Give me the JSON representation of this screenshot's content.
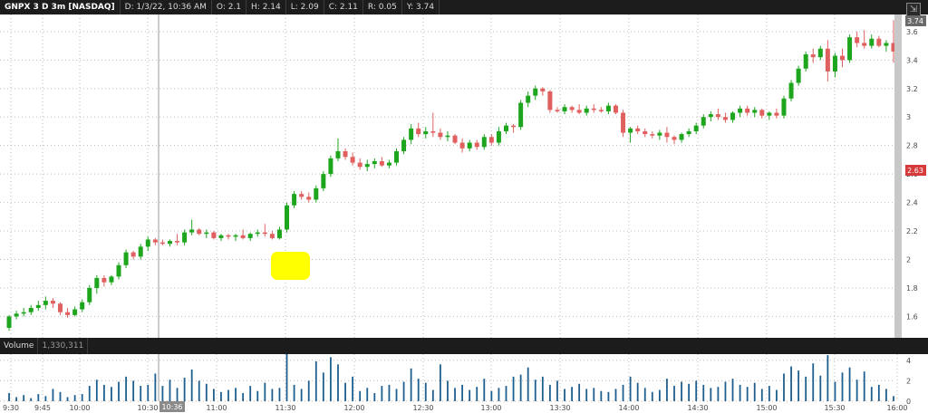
{
  "header": {
    "symbol_label": "GNPX 3 D 3m [NASDAQ]",
    "date": "D: 1/3/22, 10:36 AM",
    "open": "O: 2.1",
    "high": "H: 2.14",
    "low": "L: 2.09",
    "close": "C: 2.11",
    "range": "R: 0.05",
    "y": "Y: 3.74"
  },
  "price_labels": {
    "high_tag": "3.74",
    "last_tag": "2.63"
  },
  "volume_panel": {
    "label": "Volume",
    "value": "1,330,311"
  },
  "cursor_time_label": "10:36",
  "colors": {
    "up": "#1ea51e",
    "down": "#e06060",
    "volume": "#1f5f8f",
    "grid": "#bdbdbd",
    "last_tag": "#d63a3a",
    "highlight": "#ffff00"
  },
  "chart_data": {
    "type": "candlestick",
    "price_axis": {
      "ylim": [
        1.45,
        3.72
      ],
      "ticks": [
        "1.6",
        "1.8",
        "2",
        "2.2",
        "2.4",
        "2.6",
        "2.8",
        "3",
        "3.2",
        "3.4",
        "3.6"
      ]
    },
    "volume_axis": {
      "ylim": [
        0,
        4.6
      ],
      "ticks": [
        "0",
        "2",
        "4"
      ]
    },
    "time_ticks": [
      "9:30",
      "9:45",
      "10:00",
      "10:30",
      "11:00",
      "11:30",
      "12:00",
      "12:30",
      "13:00",
      "13:30",
      "14:00",
      "14:30",
      "15:00",
      "15:30",
      "16:00"
    ],
    "grid": true,
    "candles": [
      [
        1.52,
        1.61,
        1.5,
        1.6
      ],
      [
        1.6,
        1.64,
        1.58,
        1.62
      ],
      [
        1.62,
        1.66,
        1.6,
        1.63
      ],
      [
        1.63,
        1.68,
        1.61,
        1.66
      ],
      [
        1.66,
        1.71,
        1.64,
        1.68
      ],
      [
        1.68,
        1.74,
        1.65,
        1.71
      ],
      [
        1.71,
        1.73,
        1.66,
        1.69
      ],
      [
        1.69,
        1.7,
        1.61,
        1.63
      ],
      [
        1.63,
        1.66,
        1.59,
        1.61
      ],
      [
        1.61,
        1.67,
        1.6,
        1.65
      ],
      [
        1.65,
        1.72,
        1.63,
        1.7
      ],
      [
        1.7,
        1.82,
        1.68,
        1.8
      ],
      [
        1.8,
        1.89,
        1.76,
        1.87
      ],
      [
        1.87,
        1.89,
        1.81,
        1.84
      ],
      [
        1.84,
        1.89,
        1.82,
        1.88
      ],
      [
        1.88,
        1.98,
        1.86,
        1.96
      ],
      [
        1.96,
        2.07,
        1.94,
        2.05
      ],
      [
        2.05,
        2.06,
        2.0,
        2.02
      ],
      [
        2.02,
        2.11,
        2.0,
        2.09
      ],
      [
        2.09,
        2.16,
        2.06,
        2.14
      ],
      [
        2.14,
        2.15,
        2.1,
        2.12
      ],
      [
        2.12,
        2.14,
        2.1,
        2.11
      ],
      [
        2.11,
        2.14,
        2.09,
        2.13
      ],
      [
        2.13,
        2.18,
        2.1,
        2.12
      ],
      [
        2.12,
        2.21,
        2.1,
        2.19
      ],
      [
        2.19,
        2.28,
        2.17,
        2.21
      ],
      [
        2.21,
        2.22,
        2.17,
        2.18
      ],
      [
        2.18,
        2.21,
        2.15,
        2.19
      ],
      [
        2.19,
        2.2,
        2.14,
        2.15
      ],
      [
        2.15,
        2.18,
        2.13,
        2.17
      ],
      [
        2.17,
        2.18,
        2.14,
        2.16
      ],
      [
        2.16,
        2.18,
        2.13,
        2.17
      ],
      [
        2.17,
        2.21,
        2.14,
        2.15
      ],
      [
        2.15,
        2.19,
        2.13,
        2.18
      ],
      [
        2.18,
        2.21,
        2.16,
        2.19
      ],
      [
        2.19,
        2.25,
        2.16,
        2.18
      ],
      [
        2.18,
        2.2,
        2.14,
        2.15
      ],
      [
        2.15,
        2.23,
        2.14,
        2.21
      ],
      [
        2.21,
        2.4,
        2.19,
        2.38
      ],
      [
        2.38,
        2.48,
        2.36,
        2.46
      ],
      [
        2.46,
        2.48,
        2.42,
        2.44
      ],
      [
        2.44,
        2.47,
        2.4,
        2.42
      ],
      [
        2.42,
        2.52,
        2.4,
        2.5
      ],
      [
        2.5,
        2.62,
        2.48,
        2.6
      ],
      [
        2.6,
        2.73,
        2.58,
        2.71
      ],
      [
        2.71,
        2.85,
        2.69,
        2.76
      ],
      [
        2.76,
        2.78,
        2.7,
        2.72
      ],
      [
        2.72,
        2.75,
        2.66,
        2.68
      ],
      [
        2.68,
        2.71,
        2.63,
        2.65
      ],
      [
        2.65,
        2.7,
        2.62,
        2.67
      ],
      [
        2.67,
        2.71,
        2.64,
        2.69
      ],
      [
        2.69,
        2.72,
        2.65,
        2.66
      ],
      [
        2.66,
        2.7,
        2.64,
        2.68
      ],
      [
        2.68,
        2.78,
        2.66,
        2.76
      ],
      [
        2.76,
        2.86,
        2.74,
        2.84
      ],
      [
        2.84,
        2.95,
        2.81,
        2.92
      ],
      [
        2.92,
        2.96,
        2.86,
        2.88
      ],
      [
        2.88,
        2.93,
        2.85,
        2.9
      ],
      [
        2.9,
        3.03,
        2.86,
        2.89
      ],
      [
        2.89,
        2.92,
        2.84,
        2.86
      ],
      [
        2.86,
        2.9,
        2.83,
        2.87
      ],
      [
        2.87,
        2.88,
        2.81,
        2.82
      ],
      [
        2.82,
        2.85,
        2.75,
        2.78
      ],
      [
        2.78,
        2.84,
        2.76,
        2.82
      ],
      [
        2.82,
        2.84,
        2.77,
        2.79
      ],
      [
        2.79,
        2.88,
        2.77,
        2.86
      ],
      [
        2.86,
        2.88,
        2.8,
        2.82
      ],
      [
        2.82,
        2.93,
        2.8,
        2.9
      ],
      [
        2.9,
        2.96,
        2.88,
        2.94
      ],
      [
        2.94,
        2.95,
        2.89,
        2.93
      ],
      [
        2.93,
        3.12,
        2.91,
        3.1
      ],
      [
        3.1,
        3.18,
        3.07,
        3.15
      ],
      [
        3.15,
        3.22,
        3.12,
        3.2
      ],
      [
        3.2,
        3.21,
        3.15,
        3.18
      ],
      [
        3.18,
        3.19,
        3.03,
        3.05
      ],
      [
        3.05,
        3.07,
        3.03,
        3.04
      ],
      [
        3.04,
        3.09,
        3.02,
        3.07
      ],
      [
        3.07,
        3.08,
        3.03,
        3.05
      ],
      [
        3.05,
        3.09,
        3.02,
        3.03
      ],
      [
        3.03,
        3.08,
        3.01,
        3.06
      ],
      [
        3.06,
        3.09,
        3.03,
        3.05
      ],
      [
        3.05,
        3.07,
        3.03,
        3.04
      ],
      [
        3.04,
        3.1,
        3.02,
        3.08
      ],
      [
        3.08,
        3.09,
        3.02,
        3.03
      ],
      [
        3.03,
        3.05,
        2.86,
        2.89
      ],
      [
        2.89,
        2.93,
        2.82,
        2.92
      ],
      [
        2.92,
        2.94,
        2.88,
        2.9
      ],
      [
        2.9,
        2.92,
        2.86,
        2.88
      ],
      [
        2.88,
        2.9,
        2.85,
        2.87
      ],
      [
        2.87,
        2.91,
        2.84,
        2.89
      ],
      [
        2.89,
        2.93,
        2.82,
        2.86
      ],
      [
        2.86,
        2.87,
        2.81,
        2.84
      ],
      [
        2.84,
        2.89,
        2.82,
        2.88
      ],
      [
        2.88,
        2.92,
        2.86,
        2.9
      ],
      [
        2.9,
        2.96,
        2.88,
        2.94
      ],
      [
        2.94,
        3.02,
        2.92,
        3.0
      ],
      [
        3.0,
        3.04,
        2.97,
        3.02
      ],
      [
        3.02,
        3.06,
        2.98,
        3.0
      ],
      [
        3.0,
        3.03,
        2.96,
        2.98
      ],
      [
        2.98,
        3.04,
        2.96,
        3.03
      ],
      [
        3.03,
        3.08,
        3.0,
        3.06
      ],
      [
        3.06,
        3.08,
        3.01,
        3.03
      ],
      [
        3.03,
        3.07,
        3.0,
        3.05
      ],
      [
        3.05,
        3.06,
        2.99,
        3.01
      ],
      [
        3.01,
        3.04,
        2.98,
        3.03
      ],
      [
        3.03,
        3.06,
        2.99,
        3.01
      ],
      [
        3.01,
        3.15,
        2.99,
        3.13
      ],
      [
        3.13,
        3.26,
        3.11,
        3.24
      ],
      [
        3.24,
        3.36,
        3.22,
        3.34
      ],
      [
        3.34,
        3.46,
        3.32,
        3.44
      ],
      [
        3.44,
        3.48,
        3.38,
        3.42
      ],
      [
        3.42,
        3.5,
        3.4,
        3.48
      ],
      [
        3.48,
        3.54,
        3.25,
        3.32
      ],
      [
        3.32,
        3.45,
        3.28,
        3.43
      ],
      [
        3.43,
        3.48,
        3.35,
        3.4
      ],
      [
        3.4,
        3.58,
        3.38,
        3.56
      ],
      [
        3.56,
        3.6,
        3.49,
        3.52
      ],
      [
        3.52,
        3.61,
        3.48,
        3.5
      ],
      [
        3.5,
        3.58,
        3.48,
        3.55
      ],
      [
        3.55,
        3.57,
        3.49,
        3.5
      ],
      [
        3.5,
        3.54,
        3.46,
        3.52
      ],
      [
        3.52,
        3.68,
        3.38,
        3.46
      ]
    ],
    "volume": [
      0.8,
      0.4,
      0.6,
      0.3,
      0.7,
      0.5,
      1.2,
      0.9,
      0.4,
      0.6,
      0.7,
      1.5,
      2.1,
      1.6,
      1.4,
      1.9,
      2.4,
      2.0,
      1.5,
      1.6,
      2.7,
      1.5,
      2.1,
      1.3,
      2.3,
      3.1,
      2.0,
      1.7,
      1.2,
      0.9,
      1.1,
      1.3,
      0.8,
      1.5,
      1.0,
      1.8,
      1.2,
      1.3,
      4.6,
      1.6,
      1.2,
      2.0,
      3.9,
      2.8,
      4.3,
      3.6,
      1.8,
      2.4,
      1.0,
      1.3,
      0.8,
      1.5,
      1.6,
      1.2,
      1.9,
      3.2,
      2.2,
      1.8,
      1.1,
      3.6,
      2.0,
      1.3,
      1.6,
      1.1,
      1.4,
      2.2,
      1.0,
      1.3,
      1.5,
      2.4,
      2.6,
      3.3,
      2.1,
      2.4,
      1.6,
      2.0,
      1.2,
      1.4,
      1.7,
      1.2,
      1.3,
      1.0,
      0.9,
      1.2,
      1.6,
      2.4,
      1.8,
      1.3,
      0.9,
      1.1,
      2.2,
      1.5,
      1.9,
      1.7,
      2.0,
      1.6,
      1.3,
      1.4,
      1.9,
      2.2,
      1.6,
      1.4,
      1.8,
      1.2,
      1.5,
      1.1,
      2.7,
      3.4,
      3.0,
      2.4,
      3.7,
      2.5,
      4.5,
      1.9,
      2.8,
      3.3,
      2.1,
      2.9,
      1.4,
      1.6,
      1.2,
      0.5
    ]
  }
}
